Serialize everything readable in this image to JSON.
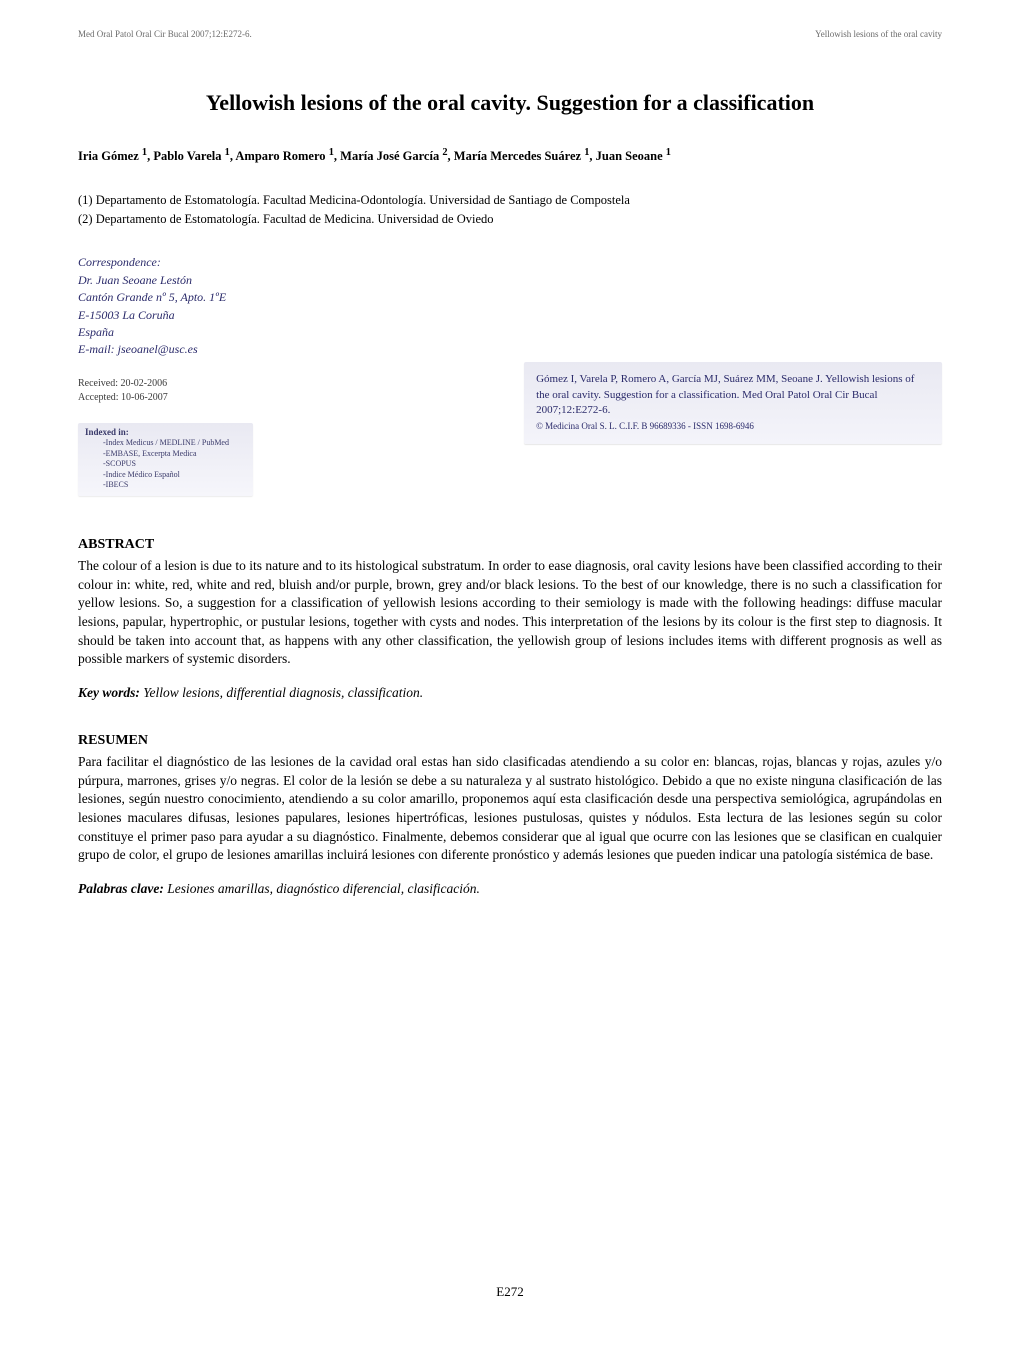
{
  "header": {
    "left": "Med Oral Patol Oral Cir Bucal 2007;12:E272-6.",
    "right": "Yellowish lesions of the oral cavity"
  },
  "title": "Yellowish lesions of the oral cavity. Suggestion for a classification",
  "authors_html": "Iria Gómez <sup>1</sup>, Pablo Varela <sup>1</sup>, Amparo Romero <sup>1</sup>, María José García <sup>2</sup>, María Mercedes Suárez <sup>1</sup>, Juan Seoane <sup>1</sup>",
  "affiliations": {
    "a1": "(1) Departamento de Estomatología. Facultad Medicina-Odontología. Universidad de Santiago de Compostela",
    "a2": "(2) Departamento de Estomatología. Facultad de Medicina. Universidad de Oviedo"
  },
  "correspondence": {
    "label": "Correspondence:",
    "line1": "Dr. Juan Seoane Lestón",
    "line2": "Cantón Grande nº 5, Apto. 1ºE",
    "line3": "E-15003 La Coruña",
    "line4": "España",
    "line5": "E-mail: jseoanel@usc.es"
  },
  "received": "Received: 20-02-2006",
  "accepted": "Accepted: 10-06-2007",
  "citation": {
    "text": "Gómez I, Varela P, Romero A, García MJ, Suárez MM, Seoane J. Yellowish lesions of the oral cavity. Suggestion for a classification. Med Oral Patol Oral Cir Bucal 2007;12:E272-6.",
    "copyright": "© Medicina Oral S. L. C.I.F. B 96689336 - ISSN 1698-6946"
  },
  "indexed": {
    "title": "Indexed in:",
    "items": [
      "-Index Medicus / MEDLINE  /  PubMed",
      "-EMBASE, Excerpta Medica",
      "-SCOPUS",
      "-Indice Médico Español",
      "-IBECS"
    ]
  },
  "abstract": {
    "heading": "ABSTRACT",
    "body": "The colour of a lesion is due to its nature and to its histological substratum. In order to ease diagnosis, oral cavity lesions have been classified according to their colour in: white, red, white and red, bluish and/or purple, brown, grey and/or black lesions. To the best of our knowledge, there is no such a classification for yellow lesions. So, a suggestion for a classification of yellowish lesions according to their semiology is made with the following headings: diffuse macular lesions, papular, hypertrophic, or pustular lesions, together with cysts and nodes. This interpretation of the lesions by its colour is the first step to diagnosis. It should be taken into account that, as happens with any other classification, the yellowish group of lesions includes items with different prognosis as well as possible markers of systemic disorders.",
    "keywords_label": "Key words:",
    "keywords": " Yellow lesions, differential diagnosis, classification."
  },
  "resumen": {
    "heading": "RESUMEN",
    "body": "Para facilitar el diagnóstico de las lesiones de la cavidad oral estas han sido clasificadas atendiendo a su color en: blancas, rojas, blancas y rojas, azules y/o púrpura, marrones, grises y/o negras. El color de la lesión se debe a su naturaleza y al sustrato histológico. Debido a que no existe ninguna clasificación de las lesiones, según nuestro conocimiento, atendiendo a su color amarillo, proponemos aquí esta clasificación desde una perspectiva semiológica, agrupándolas en lesiones maculares difusas, lesiones papulares, lesiones hipertróficas, lesiones pustulosas, quistes y nódulos. Esta lectura de las lesiones según su color constituye el primer paso para ayudar a su diagnóstico. Finalmente, debemos considerar que al igual que ocurre con las lesiones que se clasifican en cualquier grupo de color, el grupo de lesiones amarillas incluirá lesiones con diferente pronóstico y además lesiones que pueden indicar una patología sistémica de base.",
    "keywords_label": "Palabras clave:",
    "keywords": " Lesiones amarillas, diagnóstico diferencial, clasificación."
  },
  "page_number": "E272",
  "colors": {
    "background": "#ffffff",
    "text": "#000000",
    "header_text": "#6b6b6b",
    "correspondence_text": "#2a2a6a",
    "box_bg_top": "#e9e9f2",
    "box_bg_bottom": "#f4f4fa"
  },
  "typography": {
    "title_fontsize_pt": 16,
    "authors_fontsize_pt": 10,
    "body_fontsize_pt": 10,
    "header_fontsize_pt": 7,
    "font_family": "Georgia / Times-like serif"
  }
}
